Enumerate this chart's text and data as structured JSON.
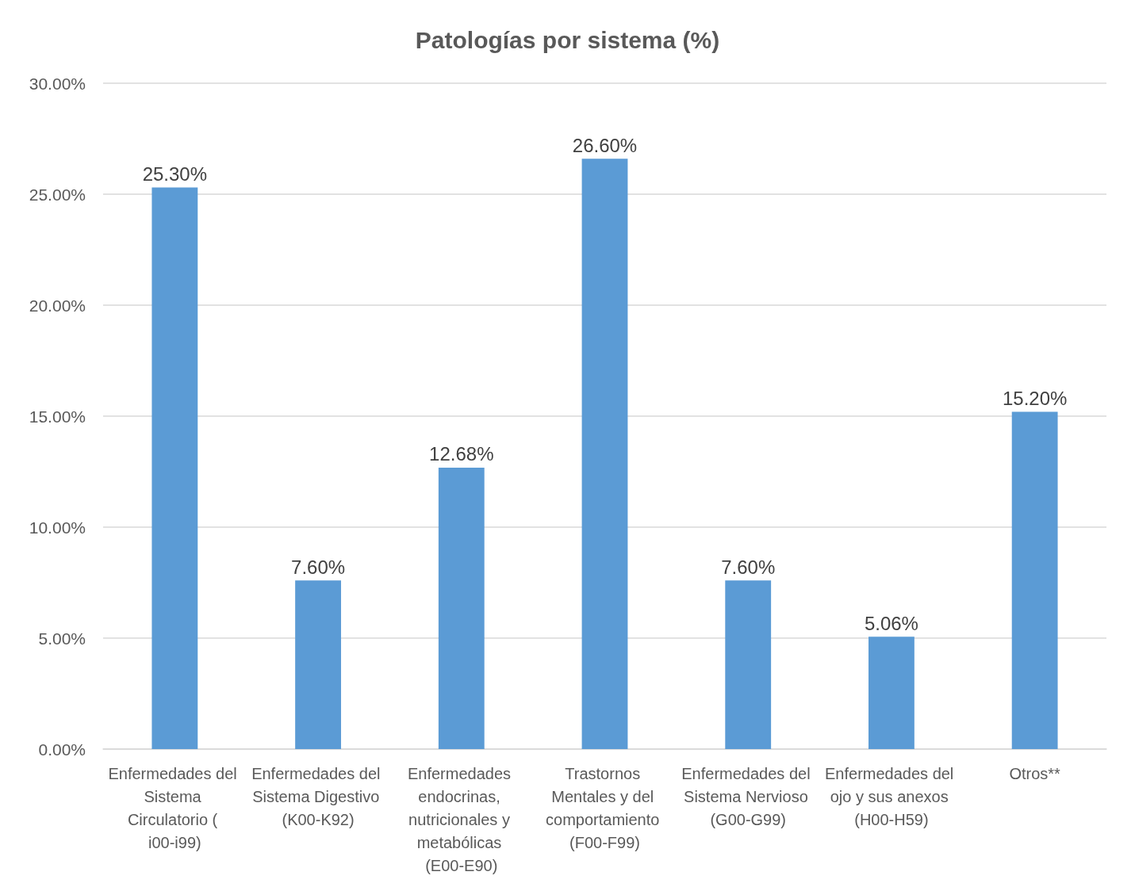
{
  "chart_data": {
    "type": "bar",
    "title": "Patologías por sistema (%)",
    "categories": [
      "Enfermedades del Sistema Circulatorio ( i00-i99)",
      "Enfermedades del Sistema Digestivo (K00-K92)",
      "Enfermedades endocrinas, nutricionales y metabólicas (E00-E90)",
      "Trastornos Mentales y del comportamiento (F00-F99)",
      "Enfermedades del Sistema Nervioso (G00-G99)",
      "Enfermedades del ojo y sus anexos (H00-H59)",
      "Otros**"
    ],
    "values": [
      25.3,
      7.6,
      12.68,
      26.6,
      7.6,
      5.06,
      15.2
    ],
    "value_labels": [
      "25.30%",
      "7.60%",
      "12.68%",
      "26.60%",
      "7.60%",
      "5.06%",
      "15.20%"
    ],
    "color": "#5b9bd5",
    "ylim": [
      0,
      30
    ],
    "yticks": [
      {
        "value": 0,
        "label": "0.00%"
      },
      {
        "value": 5,
        "label": "5.00%"
      },
      {
        "value": 10,
        "label": "10.00%"
      },
      {
        "value": 15,
        "label": "15.00%"
      },
      {
        "value": 20,
        "label": "20.00%"
      },
      {
        "value": 25,
        "label": "25.00%"
      },
      {
        "value": 30,
        "label": "30.00%"
      }
    ],
    "grid": "y"
  }
}
